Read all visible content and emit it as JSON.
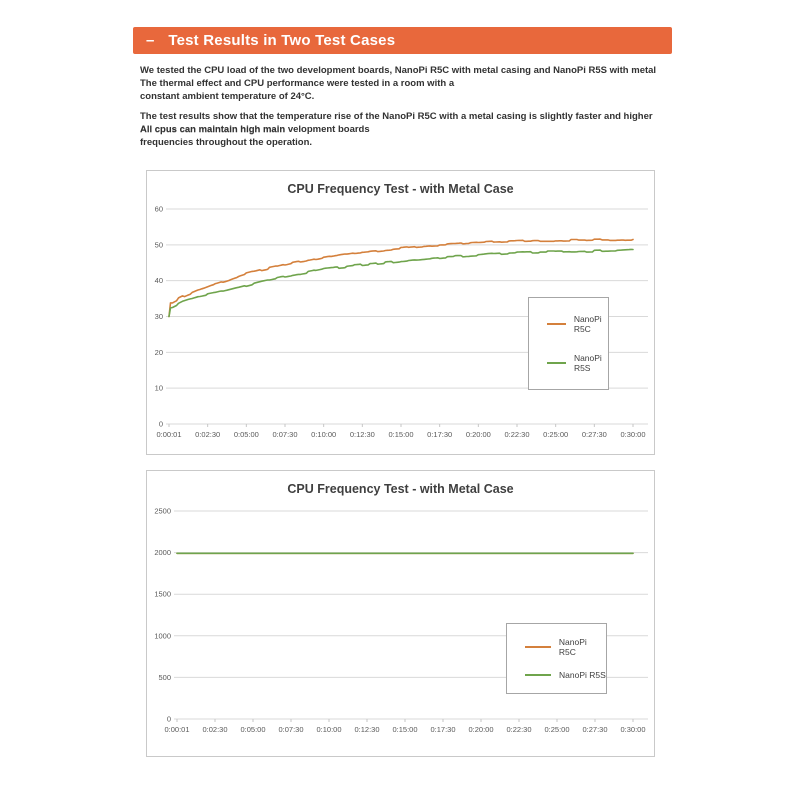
{
  "banner": {
    "dash": "–",
    "title": "Test Results in Two Test Cases",
    "bg_color": "#E8683C",
    "text_color": "#FFFFFF"
  },
  "intro": {
    "p1": [
      "We tested the CPU load of the two development boards, NanoPi R5C with metal casing and NanoPi R5S with metal",
      "The thermal effect and CPU performance were tested in a room with a",
      "constant ambient temperature of 24°C."
    ],
    "p2_line1": "The test results show that the temperature rise of the NanoPi R5C with a metal casing is slightly faster and higher",
    "p2_line2_overlap": {
      "front": "All cpus can maintain high main",
      "back": "velopment boards"
    },
    "p2_line3": "frequencies throughout the operation."
  },
  "chart_data": [
    {
      "type": "line",
      "title": "CPU Frequency Test - with Metal Case",
      "xlabel": "",
      "ylabel": "",
      "ylim": [
        0,
        60
      ],
      "yticks": [
        0,
        10,
        20,
        30,
        40,
        50,
        60
      ],
      "x_tick_labels": [
        "0:00:01",
        "0:02:30",
        "0:05:00",
        "0:07:30",
        "0:10:00",
        "0:12:30",
        "0:15:00",
        "0:17:30",
        "0:20:00",
        "0:22:30",
        "0:25:00",
        "0:27:30",
        "0:30:00"
      ],
      "x_tick_minutes": [
        0,
        2.5,
        5,
        7.5,
        10,
        12.5,
        15,
        17.5,
        20,
        22.5,
        25,
        27.5,
        30
      ],
      "grid": true,
      "legend_position": "right-middle",
      "noise": 0.28,
      "series": [
        {
          "name": "NanoPi R5C",
          "color": "#D4803C",
          "points": [
            [
              0,
              30
            ],
            [
              0.1,
              33.8
            ],
            [
              1,
              35.8
            ],
            [
              2,
              37.6
            ],
            [
              3,
              39.1
            ],
            [
              4,
              40.4
            ],
            [
              5,
              41.9
            ],
            [
              6,
              43.0
            ],
            [
              7,
              43.9
            ],
            [
              8,
              44.9
            ],
            [
              9,
              45.6
            ],
            [
              10,
              46.4
            ],
            [
              11,
              47.1
            ],
            [
              12,
              47.8
            ],
            [
              13,
              48.2
            ],
            [
              14,
              48.6
            ],
            [
              15,
              49.0
            ],
            [
              16,
              49.4
            ],
            [
              17,
              49.8
            ],
            [
              18,
              50.0
            ],
            [
              19,
              50.3
            ],
            [
              20,
              50.6
            ],
            [
              21,
              50.8
            ],
            [
              22,
              51.0
            ],
            [
              23,
              51.1
            ],
            [
              24,
              51.2
            ],
            [
              25,
              51.2
            ],
            [
              26,
              51.3
            ],
            [
              27,
              51.3
            ],
            [
              28,
              51.4
            ],
            [
              29,
              51.4
            ],
            [
              30,
              51.5
            ]
          ]
        },
        {
          "name": "NanoPi R5S",
          "color": "#6FA44C",
          "points": [
            [
              0,
              30
            ],
            [
              0.1,
              32.4
            ],
            [
              1,
              34.4
            ],
            [
              2,
              35.7
            ],
            [
              3,
              36.6
            ],
            [
              4,
              37.6
            ],
            [
              5,
              38.7
            ],
            [
              6,
              39.8
            ],
            [
              7,
              40.7
            ],
            [
              8,
              41.5
            ],
            [
              9,
              42.3
            ],
            [
              10,
              43.2
            ],
            [
              11,
              43.7
            ],
            [
              12,
              44.2
            ],
            [
              13,
              44.6
            ],
            [
              14,
              45.0
            ],
            [
              15,
              45.4
            ],
            [
              16,
              45.8
            ],
            [
              17,
              46.2
            ],
            [
              18,
              46.6
            ],
            [
              19,
              46.8
            ],
            [
              20,
              47.1
            ],
            [
              21,
              47.5
            ],
            [
              22,
              47.7
            ],
            [
              23,
              47.9
            ],
            [
              24,
              48.0
            ],
            [
              25,
              48.0
            ],
            [
              26,
              48.1
            ],
            [
              27,
              48.2
            ],
            [
              28,
              48.3
            ],
            [
              29,
              48.4
            ],
            [
              30,
              48.7
            ]
          ]
        }
      ]
    },
    {
      "type": "line",
      "title": "CPU Frequency Test - with Metal Case",
      "xlabel": "",
      "ylabel": "",
      "ylim": [
        0,
        2500
      ],
      "yticks": [
        0,
        500,
        1000,
        1500,
        2000,
        2500
      ],
      "x_tick_labels": [
        "0:00:01",
        "0:02:30",
        "0:05:00",
        "0:07:30",
        "0:10:00",
        "0:12:30",
        "0:15:00",
        "0:17:30",
        "0:20:00",
        "0:22:30",
        "0:25:00",
        "0:27:30",
        "0:30:00"
      ],
      "x_tick_minutes": [
        0,
        2.5,
        5,
        7.5,
        10,
        12.5,
        15,
        17.5,
        20,
        22.5,
        25,
        27.5,
        30
      ],
      "grid": true,
      "legend_position": "right-middle",
      "noise": 0,
      "series": [
        {
          "name": "NanoPi R5C",
          "color": "#D4803C",
          "points": [
            [
              0,
              1992
            ],
            [
              30,
              1992
            ]
          ]
        },
        {
          "name": "NanoPi R5S",
          "color": "#6FA44C",
          "points": [
            [
              0,
              1992
            ],
            [
              30,
              1992
            ]
          ]
        }
      ]
    }
  ]
}
